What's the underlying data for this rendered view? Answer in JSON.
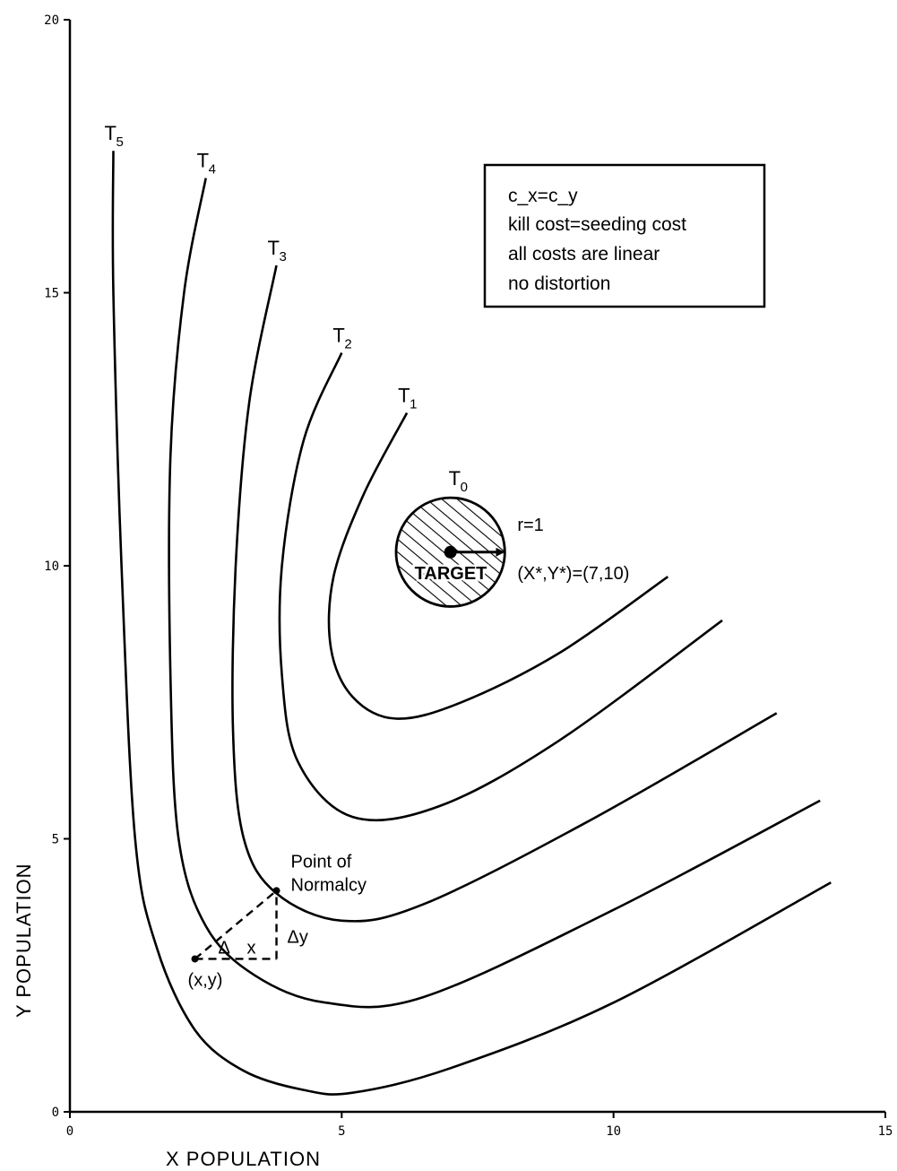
{
  "chart_data": {
    "type": "line",
    "xlabel": "X POPULATION",
    "ylabel": "Y POPULATION",
    "xlim": [
      0,
      15
    ],
    "ylim": [
      0,
      20
    ],
    "xticks": [
      "0",
      "5",
      "10",
      "15"
    ],
    "yticks": [
      "0",
      "5",
      "10",
      "15",
      "20"
    ],
    "grid": false,
    "legend": {
      "lines": [
        "c_x=c_y",
        "kill cost=seeding cost",
        "all costs are linear",
        "no distortion"
      ]
    },
    "target": {
      "x": 7,
      "y": 10.25,
      "radius": 1,
      "label": "TARGET",
      "contour": "T",
      "contour_sub": "0",
      "radius_label": "r=1",
      "coord_label": "(X*,Y*)=(7,10)"
    },
    "series": [
      {
        "name": "T1",
        "label": "T",
        "sub": "1",
        "points": [
          [
            6.2,
            12.8
          ],
          [
            5.4,
            11.3
          ],
          [
            4.85,
            9.8
          ],
          [
            4.8,
            8.5
          ],
          [
            5.2,
            7.6
          ],
          [
            6.0,
            7.2
          ],
          [
            7.2,
            7.5
          ],
          [
            9.0,
            8.4
          ],
          [
            11.0,
            9.8
          ]
        ]
      },
      {
        "name": "T2",
        "label": "T",
        "sub": "2",
        "points": [
          [
            5.0,
            13.9
          ],
          [
            4.3,
            12.3
          ],
          [
            3.9,
            10.0
          ],
          [
            3.9,
            8.0
          ],
          [
            4.2,
            6.4
          ],
          [
            5.2,
            5.4
          ],
          [
            6.8,
            5.6
          ],
          [
            9.0,
            6.8
          ],
          [
            12.0,
            9.0
          ]
        ]
      },
      {
        "name": "T3",
        "label": "T",
        "sub": "3",
        "points": [
          [
            3.8,
            15.5
          ],
          [
            3.3,
            13.0
          ],
          [
            3.05,
            10.0
          ],
          [
            3.0,
            7.0
          ],
          [
            3.2,
            5.0
          ],
          [
            3.8,
            4.0
          ],
          [
            5.0,
            3.5
          ],
          [
            6.5,
            3.8
          ],
          [
            9.5,
            5.3
          ],
          [
            13.0,
            7.3
          ]
        ]
      },
      {
        "name": "T4",
        "label": "T",
        "sub": "4",
        "points": [
          [
            2.5,
            17.1
          ],
          [
            2.1,
            15.0
          ],
          [
            1.85,
            12.0
          ],
          [
            1.85,
            8.0
          ],
          [
            2.0,
            5.0
          ],
          [
            2.5,
            3.4
          ],
          [
            3.4,
            2.5
          ],
          [
            4.7,
            2.0
          ],
          [
            6.5,
            2.1
          ],
          [
            10.0,
            3.7
          ],
          [
            13.8,
            5.7
          ]
        ]
      },
      {
        "name": "T5",
        "label": "T",
        "sub": "5",
        "points": [
          [
            0.8,
            17.6
          ],
          [
            0.8,
            15.0
          ],
          [
            0.95,
            10.0
          ],
          [
            1.2,
            5.0
          ],
          [
            1.6,
            3.0
          ],
          [
            2.3,
            1.5
          ],
          [
            3.2,
            0.75
          ],
          [
            4.3,
            0.4
          ],
          [
            5.2,
            0.35
          ],
          [
            7.0,
            0.8
          ],
          [
            10.0,
            2.0
          ],
          [
            14.0,
            4.2
          ]
        ]
      }
    ],
    "annotations": {
      "point_of_normalcy_line1": "Point of",
      "point_of_normalcy_line2": "Normalcy",
      "normalcy": {
        "x": 3.8,
        "y": 4.05
      },
      "origin": {
        "x": 2.3,
        "y": 2.8
      },
      "origin_label": "(x,y)",
      "delta_label": "Δ",
      "dx_label": "x",
      "dy_label": "Δy"
    }
  }
}
